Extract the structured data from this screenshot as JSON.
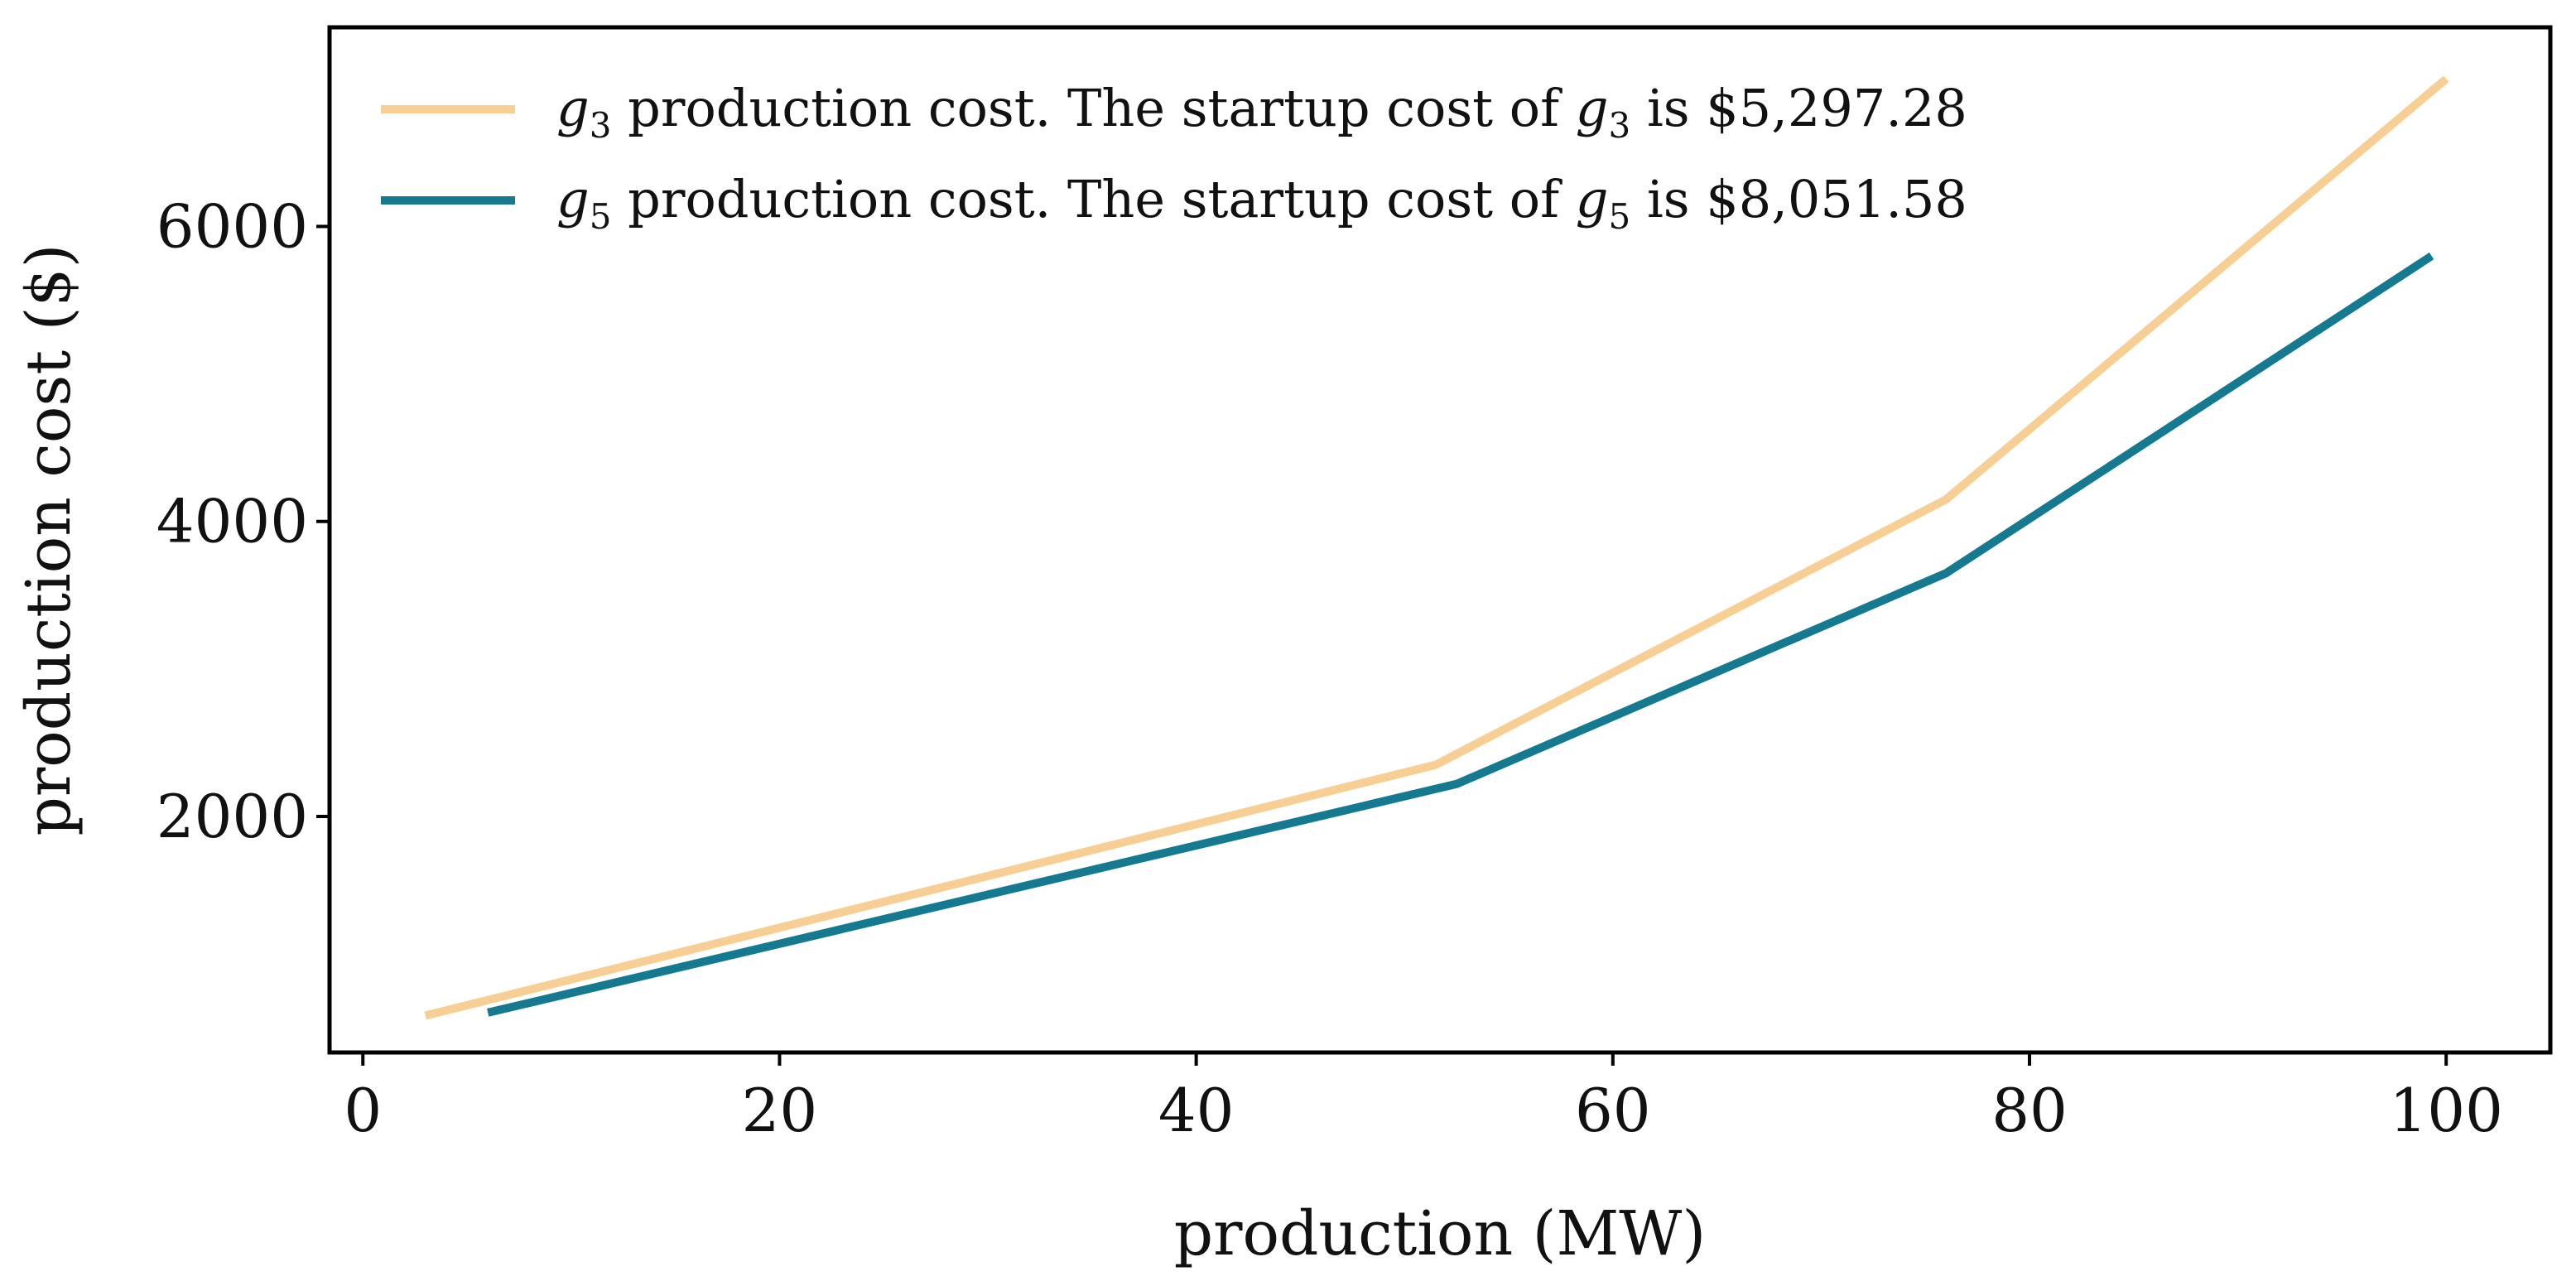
{
  "chart_data": {
    "type": "line",
    "xlabel": "production (MW)",
    "ylabel": "production cost ($)",
    "xlim": [
      -1.6,
      105
    ],
    "ylim": [
      400,
      7350
    ],
    "xticks": [
      0,
      20,
      40,
      60,
      80,
      100
    ],
    "yticks": [
      2000,
      4000,
      6000
    ],
    "grid": false,
    "legend_position": "top-left",
    "series": [
      {
        "name": "g3 production cost. The startup cost of g3 is $5,297.28",
        "legend": {
          "symbol": "g",
          "subscript": "3",
          "text_a": "production cost. The startup cost of",
          "text_b": "is $5,297.28"
        },
        "color": "#F7CF94",
        "x": [
          3,
          51.5,
          76,
          100
        ],
        "y": [
          650,
          2350,
          4150,
          7000
        ]
      },
      {
        "name": "g5 production cost. The startup cost of g5 is $8,051.58",
        "legend": {
          "symbol": "g",
          "subscript": "5",
          "text_a": "production cost. The startup cost of",
          "text_b": "is $8,051.58"
        },
        "color": "#157A90",
        "x": [
          6,
          52.5,
          76,
          99.3
        ],
        "y": [
          670,
          2220,
          3650,
          5800
        ]
      }
    ]
  }
}
